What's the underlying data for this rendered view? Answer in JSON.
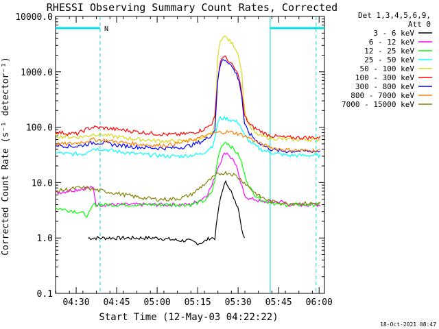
{
  "chart_data": {
    "type": "line",
    "title": "RHESSI Observing Summary Count Rates, Corrected",
    "xlabel": "Start Time (12-May-03 04:22:22)",
    "ylabel": "Corrected Count Rate (s⁻¹ detector⁻¹)",
    "y_scale": "log",
    "ylim": [
      0.1,
      10000
    ],
    "x_unit": "minutes after 04:22:22",
    "xlim": [
      0,
      99.6
    ],
    "x_ticks": [
      {
        "label": "04:30",
        "x": 7.63
      },
      {
        "label": "04:45",
        "x": 22.63
      },
      {
        "label": "05:00",
        "x": 37.63
      },
      {
        "label": "05:15",
        "x": 52.63
      },
      {
        "label": "05:30",
        "x": 67.63
      },
      {
        "label": "05:45",
        "x": 82.63
      },
      {
        "label": "06:00",
        "x": 97.63
      }
    ],
    "y_ticks": [
      {
        "label": "0.1",
        "y": 0.1
      },
      {
        "label": "1.0",
        "y": 1
      },
      {
        "label": "10.0",
        "y": 10
      },
      {
        "label": "100.0",
        "y": 100
      },
      {
        "label": "1000.0",
        "y": 1000
      },
      {
        "label": "10000.0",
        "y": 10000
      }
    ],
    "legend_header": "Det 1,3,4,5,6,9,\nAtt 0",
    "legend_position": "right",
    "series": [
      {
        "name": "3 - 6 keV",
        "color": "#000000",
        "x": [
          12,
          14,
          18,
          22,
          26,
          30,
          34,
          38,
          42,
          46,
          49,
          51,
          53,
          55,
          57,
          59,
          60,
          61,
          62,
          63,
          64,
          65,
          66,
          67,
          68,
          69,
          70
        ],
        "y": [
          1,
          1,
          1,
          1,
          1,
          1,
          1,
          1,
          0.95,
          0.9,
          0.9,
          0.85,
          0.8,
          0.85,
          1,
          1,
          2.5,
          5,
          8,
          10,
          9,
          7,
          5,
          4,
          3,
          1.5,
          1
        ]
      },
      {
        "name": "6 - 12 keV",
        "color": "#ff00ff",
        "x": [
          0,
          4,
          8,
          12,
          14,
          15,
          18,
          22,
          26,
          30,
          34,
          38,
          42,
          46,
          50,
          54,
          56,
          58,
          60,
          62,
          63,
          64,
          65,
          66,
          67,
          68,
          70,
          72,
          74,
          76,
          78,
          80,
          82,
          84,
          86,
          88,
          90,
          92,
          94,
          96,
          98
        ],
        "y": [
          6.5,
          7,
          7.5,
          8,
          8,
          4,
          4,
          4,
          4,
          4,
          4,
          4,
          4,
          4,
          4,
          5,
          6,
          9,
          18,
          30,
          35,
          33,
          28,
          25,
          20,
          12,
          6,
          5,
          5,
          4.5,
          4.5,
          4.5,
          4.5,
          4.5,
          4,
          4,
          4,
          4,
          4,
          4,
          4
        ]
      },
      {
        "name": "12 - 25 keV",
        "color": "#00ff00",
        "x": [
          0,
          4,
          8,
          10,
          12,
          14,
          18,
          22,
          26,
          30,
          34,
          38,
          42,
          46,
          50,
          54,
          56,
          58,
          59,
          60,
          61,
          62,
          63,
          64,
          65,
          66,
          67,
          68,
          69,
          70,
          72,
          74,
          76,
          78,
          80,
          82,
          84,
          86,
          88,
          90,
          92,
          94,
          96,
          98
        ],
        "y": [
          3.5,
          3.2,
          3,
          2.8,
          2.5,
          4,
          4,
          4,
          4,
          4,
          4,
          4,
          4,
          4,
          4,
          4.5,
          5,
          7,
          11,
          25,
          40,
          50,
          55,
          50,
          45,
          40,
          35,
          30,
          22,
          14,
          8,
          6,
          5,
          4.5,
          4.5,
          4,
          4,
          4,
          4,
          4,
          4,
          4,
          4,
          4
        ]
      },
      {
        "name": "25 - 50 keV",
        "color": "#00ffff",
        "x": [
          0,
          4,
          8,
          11,
          12,
          14,
          18,
          22,
          26,
          30,
          34,
          38,
          42,
          46,
          50,
          54,
          56,
          58,
          59,
          60,
          61,
          62,
          63,
          64,
          65,
          66,
          67,
          68,
          69,
          70,
          72,
          74,
          76,
          78,
          80,
          82,
          84,
          86,
          88,
          90,
          92,
          94,
          96,
          98
        ],
        "y": [
          35,
          33,
          33,
          33,
          38,
          41,
          40,
          37,
          35,
          33,
          32,
          31,
          30,
          30,
          31,
          33,
          38,
          46,
          60,
          120,
          145,
          145,
          145,
          140,
          135,
          130,
          125,
          120,
          90,
          70,
          55,
          46,
          40,
          37,
          35,
          33,
          32,
          31,
          31,
          31,
          31,
          31,
          31,
          31
        ]
      },
      {
        "name": "50 - 100 keV",
        "color": "#d8d818",
        "x": [
          0,
          4,
          8,
          12,
          14,
          18,
          22,
          26,
          30,
          34,
          38,
          42,
          46,
          50,
          54,
          56,
          58,
          59,
          60,
          61,
          62,
          63,
          64,
          65,
          66,
          67,
          68,
          69,
          70,
          72,
          74,
          76,
          78,
          80,
          82,
          84,
          86,
          88,
          90,
          92,
          94,
          96,
          98
        ],
        "y": [
          70,
          67,
          66,
          70,
          75,
          73,
          68,
          64,
          61,
          59,
          57,
          56,
          56,
          58,
          62,
          68,
          80,
          110,
          1700,
          3500,
          4500,
          4200,
          3800,
          3400,
          3000,
          2500,
          1800,
          900,
          200,
          100,
          78,
          70,
          66,
          64,
          62,
          61,
          60,
          60,
          60,
          60,
          60,
          60,
          60
        ]
      },
      {
        "name": "100 - 300 keV",
        "color": "#ff0000",
        "x": [
          0,
          4,
          8,
          12,
          14,
          18,
          22,
          26,
          30,
          34,
          38,
          42,
          46,
          50,
          54,
          56,
          58,
          59,
          60,
          61,
          62,
          63,
          64,
          65,
          66,
          67,
          68,
          69,
          70,
          72,
          74,
          76,
          78,
          80,
          82,
          84,
          86,
          88,
          90,
          92,
          94,
          96,
          98
        ],
        "y": [
          82,
          78,
          76,
          95,
          100,
          97,
          92,
          88,
          83,
          79,
          76,
          74,
          74,
          78,
          88,
          98,
          120,
          150,
          700,
          1500,
          1900,
          1800,
          1600,
          1400,
          1200,
          1000,
          800,
          400,
          160,
          110,
          95,
          85,
          75,
          70,
          68,
          66,
          65,
          65,
          65,
          65,
          65,
          65,
          65
        ]
      },
      {
        "name": "300 - 800 keV",
        "color": "#0000ff",
        "x": [
          0,
          4,
          8,
          12,
          14,
          18,
          22,
          26,
          30,
          34,
          38,
          42,
          46,
          50,
          54,
          56,
          58,
          59,
          60,
          61,
          62,
          63,
          64,
          65,
          66,
          67,
          68,
          69,
          70,
          72,
          74,
          76,
          78,
          80,
          82,
          84,
          86,
          88,
          90,
          92,
          94,
          96,
          98
        ],
        "y": [
          48,
          46,
          45,
          50,
          53,
          52,
          48,
          46,
          44,
          43,
          42,
          42,
          43,
          47,
          55,
          62,
          75,
          90,
          650,
          1300,
          1700,
          1650,
          1500,
          1300,
          1100,
          900,
          700,
          350,
          110,
          75,
          60,
          50,
          44,
          40,
          38,
          37,
          37,
          37,
          37,
          37,
          37,
          37,
          37
        ]
      },
      {
        "name": "800 - 7000 keV",
        "color": "#ff8000",
        "x": [
          0,
          4,
          8,
          12,
          14,
          18,
          22,
          26,
          30,
          34,
          38,
          42,
          46,
          50,
          54,
          56,
          58,
          60,
          62,
          64,
          66,
          68,
          70,
          72,
          74,
          76,
          78,
          80,
          82,
          84,
          86,
          88,
          90,
          92,
          94,
          96,
          98
        ],
        "y": [
          50,
          50,
          52,
          57,
          60,
          58,
          55,
          52,
          50,
          48,
          47,
          48,
          52,
          58,
          66,
          70,
          75,
          80,
          82,
          82,
          80,
          76,
          70,
          63,
          56,
          50,
          46,
          43,
          41,
          40,
          39,
          39,
          38,
          38,
          38,
          38,
          38
        ]
      },
      {
        "name": "7000 - 15000 keV",
        "color": "#808000",
        "x": [
          0,
          4,
          8,
          12,
          14,
          18,
          22,
          26,
          30,
          34,
          38,
          42,
          46,
          50,
          52,
          54,
          56,
          58,
          60,
          62,
          64,
          66,
          68,
          70,
          72,
          74,
          76,
          78,
          80,
          82,
          84,
          86,
          88,
          90,
          92,
          94,
          96,
          98
        ],
        "y": [
          7,
          7.5,
          8,
          8,
          7.5,
          7,
          6.5,
          6,
          5.5,
          5.2,
          5,
          5,
          5.2,
          6,
          7,
          8.5,
          10,
          12,
          14,
          15,
          15,
          14,
          12,
          10,
          8,
          6.5,
          5.5,
          5,
          4.5,
          4.5,
          4.3,
          4.2,
          4.2,
          4.2,
          4.2,
          4.2,
          4.2,
          4.2
        ]
      }
    ],
    "attenuator_bars": [
      {
        "from": 0,
        "to": 16.5
      },
      {
        "from": 79.5,
        "to": 99.6
      }
    ],
    "attenuator_marker": "N",
    "cyan_markers": [
      {
        "x": 16.5,
        "style": "dashed"
      },
      {
        "x": 79.5,
        "style": "solid"
      },
      {
        "x": 96.5,
        "style": "dashed"
      }
    ],
    "grid": false
  },
  "footer": {
    "date": "18-Oct-2021 08:47"
  }
}
